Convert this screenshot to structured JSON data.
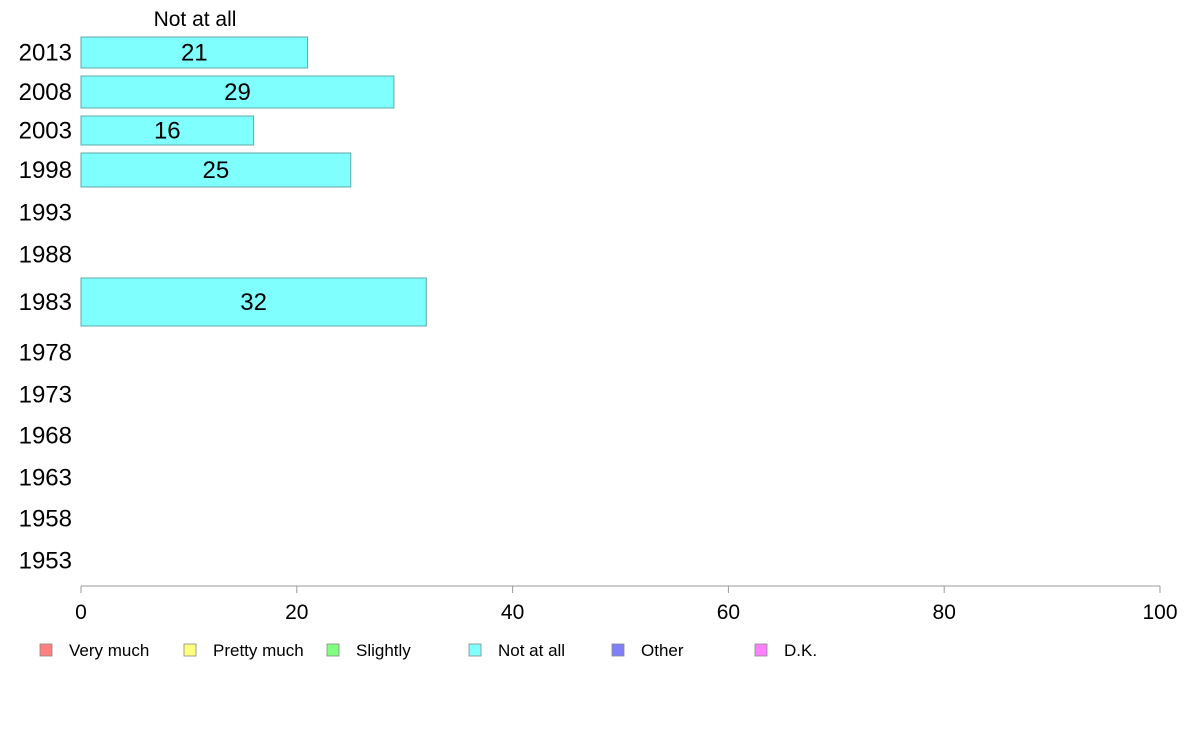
{
  "chart_data": {
    "type": "bar",
    "orientation": "horizontal",
    "series": [
      {
        "name": "Not at all",
        "color": "#80ffff",
        "categories": [
          "2013",
          "2008",
          "2003",
          "1998",
          "1993",
          "1988",
          "1983",
          "1978",
          "1973",
          "1968",
          "1963",
          "1958",
          "1953"
        ],
        "values": [
          21,
          29,
          16,
          25,
          null,
          null,
          32,
          null,
          null,
          null,
          null,
          null,
          null
        ]
      }
    ],
    "categories": [
      "2013",
      "2008",
      "2003",
      "1998",
      "1993",
      "1988",
      "1983",
      "1978",
      "1973",
      "1968",
      "1963",
      "1958",
      "1953"
    ],
    "column_header": "Not at all",
    "xlim": [
      0,
      100
    ],
    "x_ticks": [
      0,
      20,
      40,
      60,
      80,
      100
    ],
    "grid": false,
    "legend": {
      "placement": "bottom",
      "entries": [
        {
          "label": "Very much",
          "color": "#ff8080"
        },
        {
          "label": "Pretty much",
          "color": "#ffff80"
        },
        {
          "label": "Slightly",
          "color": "#80ff80"
        },
        {
          "label": "Not at all",
          "color": "#80ffff"
        },
        {
          "label": "Other",
          "color": "#8080ff"
        },
        {
          "label": "D.K.",
          "color": "#ff80ff"
        }
      ]
    }
  }
}
